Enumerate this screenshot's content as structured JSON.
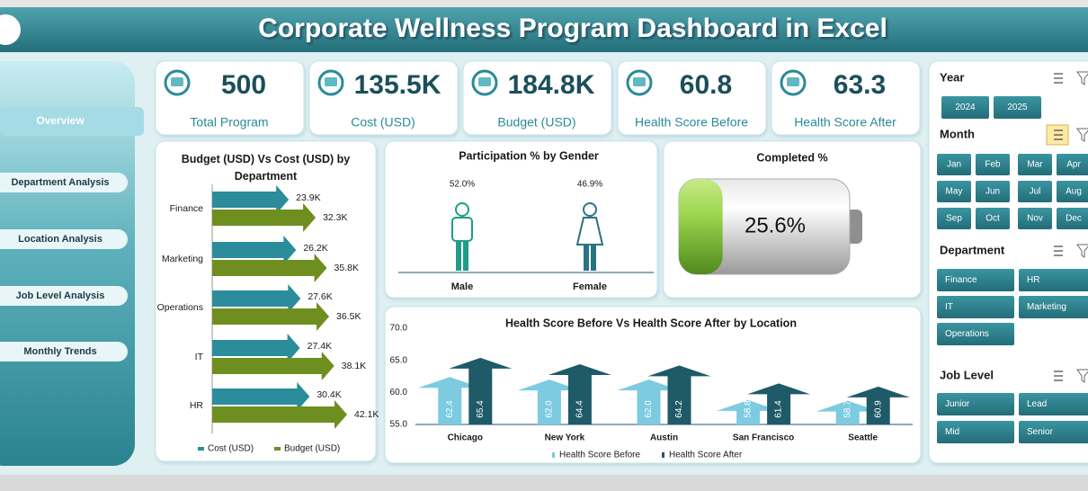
{
  "header": {
    "title": "Corporate Wellness Program Dashboard in Excel"
  },
  "nav": [
    "Overview",
    "Department Analysis",
    "Location Analysis",
    "Job Level Analysis",
    "Monthly Trends"
  ],
  "kpis": [
    {
      "value": 500,
      "label": "Total Program"
    },
    {
      "value": "135.5K",
      "label": "Cost (USD)"
    },
    {
      "value": "184.8K",
      "label": "Budget (USD)"
    },
    {
      "value": 60.8,
      "label": "Health Score Before"
    },
    {
      "value": 63.3,
      "label": "Health Score After"
    }
  ],
  "chart_data": [
    {
      "type": "arrow-bar",
      "orientation": "horizontal",
      "title": "Budget (USD) Vs Cost (USD) by Department",
      "categories": [
        "Finance",
        "Marketing",
        "Operations",
        "IT",
        "HR"
      ],
      "series": [
        {
          "name": "Cost (USD)",
          "color": "#2b8c9b",
          "values": [
            23900,
            26200,
            27600,
            27400,
            30400
          ],
          "value_labels": [
            "23.9K",
            "26.2K",
            "27.6K",
            "27.4K",
            "30.4K"
          ]
        },
        {
          "name": "Budget (USD)",
          "color": "#6e8f1f",
          "values": [
            32300,
            35800,
            36500,
            38100,
            42100
          ],
          "value_labels": [
            "32.3K",
            "35.8K",
            "36.5K",
            "38.1K",
            "42.1K"
          ]
        }
      ]
    },
    {
      "type": "pictograph",
      "title": "Participation % by Gender",
      "categories": [
        "Male",
        "Female"
      ],
      "values": [
        52.0,
        46.9
      ],
      "value_labels": [
        "52.0%",
        "46.9%"
      ],
      "colors": [
        "#1e9e86",
        "#2a7480"
      ]
    },
    {
      "type": "battery",
      "title": "Completed %",
      "value": 25.6,
      "value_label": "25.6%",
      "color": "#8cc63f"
    },
    {
      "type": "arrow-column",
      "title": "Health Score Before Vs Health Score After by Location",
      "categories": [
        "Chicago",
        "New York",
        "Austin",
        "San Francisco",
        "Seattle"
      ],
      "series": [
        {
          "name": "Health Score Before",
          "color": "#7ccbe0",
          "values": [
            62.4,
            62.0,
            62.0,
            58.8,
            58.7
          ],
          "value_labels": [
            "62.4",
            "62.0",
            "62.0",
            "58.8",
            "58.7"
          ]
        },
        {
          "name": "Health Score After",
          "color": "#1f5a68",
          "values": [
            65.4,
            64.4,
            64.2,
            61.4,
            60.9
          ],
          "value_labels": [
            "65.4",
            "64.4",
            "64.2",
            "61.4",
            "60.9"
          ]
        }
      ],
      "ylim": [
        55,
        70
      ],
      "yticks": [
        {
          "value": 55,
          "label": "55.0"
        },
        {
          "value": 60,
          "label": "60.0"
        },
        {
          "value": 65,
          "label": "65.0"
        },
        {
          "value": 70,
          "label": "70.0"
        }
      ]
    }
  ],
  "slicers": [
    {
      "title": "Year",
      "items": [
        "2024",
        "2025"
      ]
    },
    {
      "title": "Month",
      "items": [
        "Jan",
        "Feb",
        "Mar",
        "Apr",
        "May",
        "Jun",
        "Jul",
        "Aug",
        "Sep",
        "Oct",
        "Nov",
        "Dec"
      ]
    },
    {
      "title": "Department",
      "items": [
        "Finance",
        "HR",
        "IT",
        "Marketing",
        "Operations"
      ]
    },
    {
      "title": "Job Level",
      "items": [
        "Junior",
        "Lead",
        "Mid",
        "Senior"
      ]
    }
  ]
}
